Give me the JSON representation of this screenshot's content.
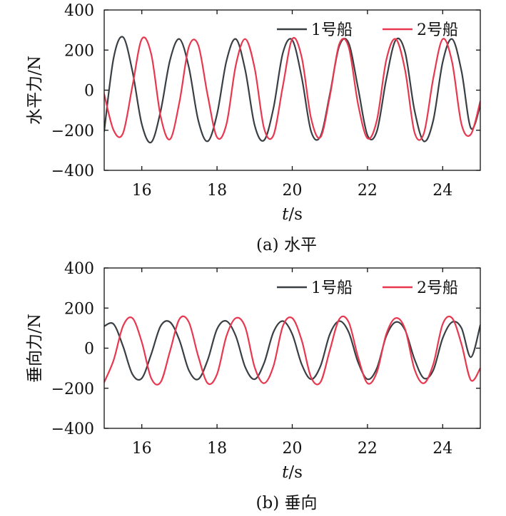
{
  "chart_data": [
    {
      "type": "line",
      "caption": "(a) 水平",
      "ylabel": "水平力/N",
      "xlabel_italic": "t",
      "xlabel_unit": "/s",
      "xlim": [
        15,
        25
      ],
      "ylim": [
        -400,
        400
      ],
      "xticks": [
        "16",
        "18",
        "20",
        "22",
        "24"
      ],
      "yticks": [
        "−400",
        "−200",
        "0",
        "200",
        "400"
      ],
      "legend_position": "top-right",
      "series": [
        {
          "name": "1号船",
          "color": "#3a3f44",
          "x": [
            15.0,
            15.25,
            15.5,
            15.75,
            16.0,
            16.25,
            16.5,
            16.75,
            17.0,
            17.25,
            17.5,
            17.75,
            18.0,
            18.25,
            18.5,
            18.75,
            19.0,
            19.25,
            19.5,
            19.75,
            20.0,
            20.25,
            20.5,
            20.75,
            21.0,
            21.25,
            21.5,
            21.75,
            22.0,
            22.25,
            22.5,
            22.75,
            23.0,
            23.25,
            23.5,
            23.75,
            24.0,
            24.25,
            24.5,
            24.75,
            25.0
          ],
          "y": [
            -205,
            160,
            265,
            95,
            -170,
            -260,
            -105,
            150,
            255,
            115,
            -150,
            -255,
            -120,
            145,
            255,
            100,
            -175,
            -250,
            -90,
            185,
            250,
            65,
            -205,
            -230,
            -20,
            220,
            235,
            10,
            -225,
            -205,
            55,
            250,
            190,
            -100,
            -255,
            -150,
            140,
            255,
            95,
            -190,
            -75
          ]
        },
        {
          "name": "2号船",
          "color": "#e8384f",
          "x": [
            15.0,
            15.25,
            15.5,
            15.75,
            16.0,
            16.25,
            16.5,
            16.75,
            17.0,
            17.25,
            17.5,
            17.75,
            18.0,
            18.25,
            18.5,
            18.75,
            19.0,
            19.25,
            19.5,
            19.75,
            20.0,
            20.25,
            20.5,
            20.75,
            21.0,
            21.25,
            21.5,
            21.75,
            22.0,
            22.25,
            22.5,
            22.75,
            23.0,
            23.25,
            23.5,
            23.75,
            24.0,
            24.25,
            24.5,
            24.75,
            25.0
          ],
          "y": [
            -20,
            -200,
            -215,
            20,
            255,
            180,
            -130,
            -245,
            -60,
            215,
            225,
            -25,
            -235,
            -170,
            125,
            255,
            110,
            -190,
            -225,
            20,
            255,
            165,
            -140,
            -235,
            -30,
            230,
            215,
            -70,
            -240,
            -150,
            150,
            255,
            100,
            -210,
            -215,
            60,
            255,
            140,
            -170,
            -220,
            -55
          ]
        }
      ]
    },
    {
      "type": "line",
      "caption": "(b) 垂向",
      "ylabel": "垂向力/N",
      "xlabel_italic": "t",
      "xlabel_unit": "/s",
      "xlim": [
        15,
        25
      ],
      "ylim": [
        -400,
        400
      ],
      "xticks": [
        "16",
        "18",
        "20",
        "22",
        "24"
      ],
      "yticks": [
        "−400",
        "−200",
        "0",
        "200",
        "400"
      ],
      "legend_position": "top-right",
      "series": [
        {
          "name": "1号船",
          "color": "#3a3f44",
          "x": [
            15.0,
            15.25,
            15.5,
            15.75,
            16.0,
            16.25,
            16.5,
            16.75,
            17.0,
            17.25,
            17.5,
            17.75,
            18.0,
            18.25,
            18.5,
            18.75,
            19.0,
            19.25,
            19.5,
            19.75,
            20.0,
            20.25,
            20.5,
            20.75,
            21.0,
            21.25,
            21.5,
            21.75,
            22.0,
            22.25,
            22.5,
            22.75,
            23.0,
            23.25,
            23.5,
            23.75,
            24.0,
            24.25,
            24.5,
            24.75,
            25.0
          ],
          "y": [
            110,
            120,
            10,
            -130,
            -150,
            -30,
            110,
            130,
            40,
            -110,
            -155,
            -60,
            95,
            135,
            60,
            -95,
            -155,
            -75,
            80,
            135,
            70,
            -80,
            -155,
            -90,
            70,
            135,
            80,
            -70,
            -155,
            -100,
            60,
            130,
            90,
            -55,
            -150,
            -110,
            50,
            130,
            100,
            -45,
            115
          ]
        },
        {
          "name": "2号船",
          "color": "#e8384f",
          "x": [
            15.0,
            15.25,
            15.5,
            15.75,
            16.0,
            16.25,
            16.5,
            16.75,
            17.0,
            17.25,
            17.5,
            17.75,
            18.0,
            18.25,
            18.5,
            18.75,
            19.0,
            19.25,
            19.5,
            19.75,
            20.0,
            20.25,
            20.5,
            20.75,
            21.0,
            21.25,
            21.5,
            21.75,
            22.0,
            22.25,
            22.5,
            22.75,
            23.0,
            23.25,
            23.5,
            23.75,
            24.0,
            24.25,
            24.5,
            24.75,
            25.0
          ],
          "y": [
            -170,
            -60,
            110,
            150,
            30,
            -150,
            -170,
            -15,
            145,
            130,
            -40,
            -175,
            -130,
            60,
            150,
            105,
            -95,
            -175,
            -90,
            110,
            150,
            40,
            -145,
            -170,
            -10,
            145,
            130,
            -45,
            -175,
            -120,
            70,
            150,
            95,
            -105,
            -175,
            -80,
            120,
            150,
            20,
            -160,
            -100
          ]
        }
      ]
    }
  ]
}
